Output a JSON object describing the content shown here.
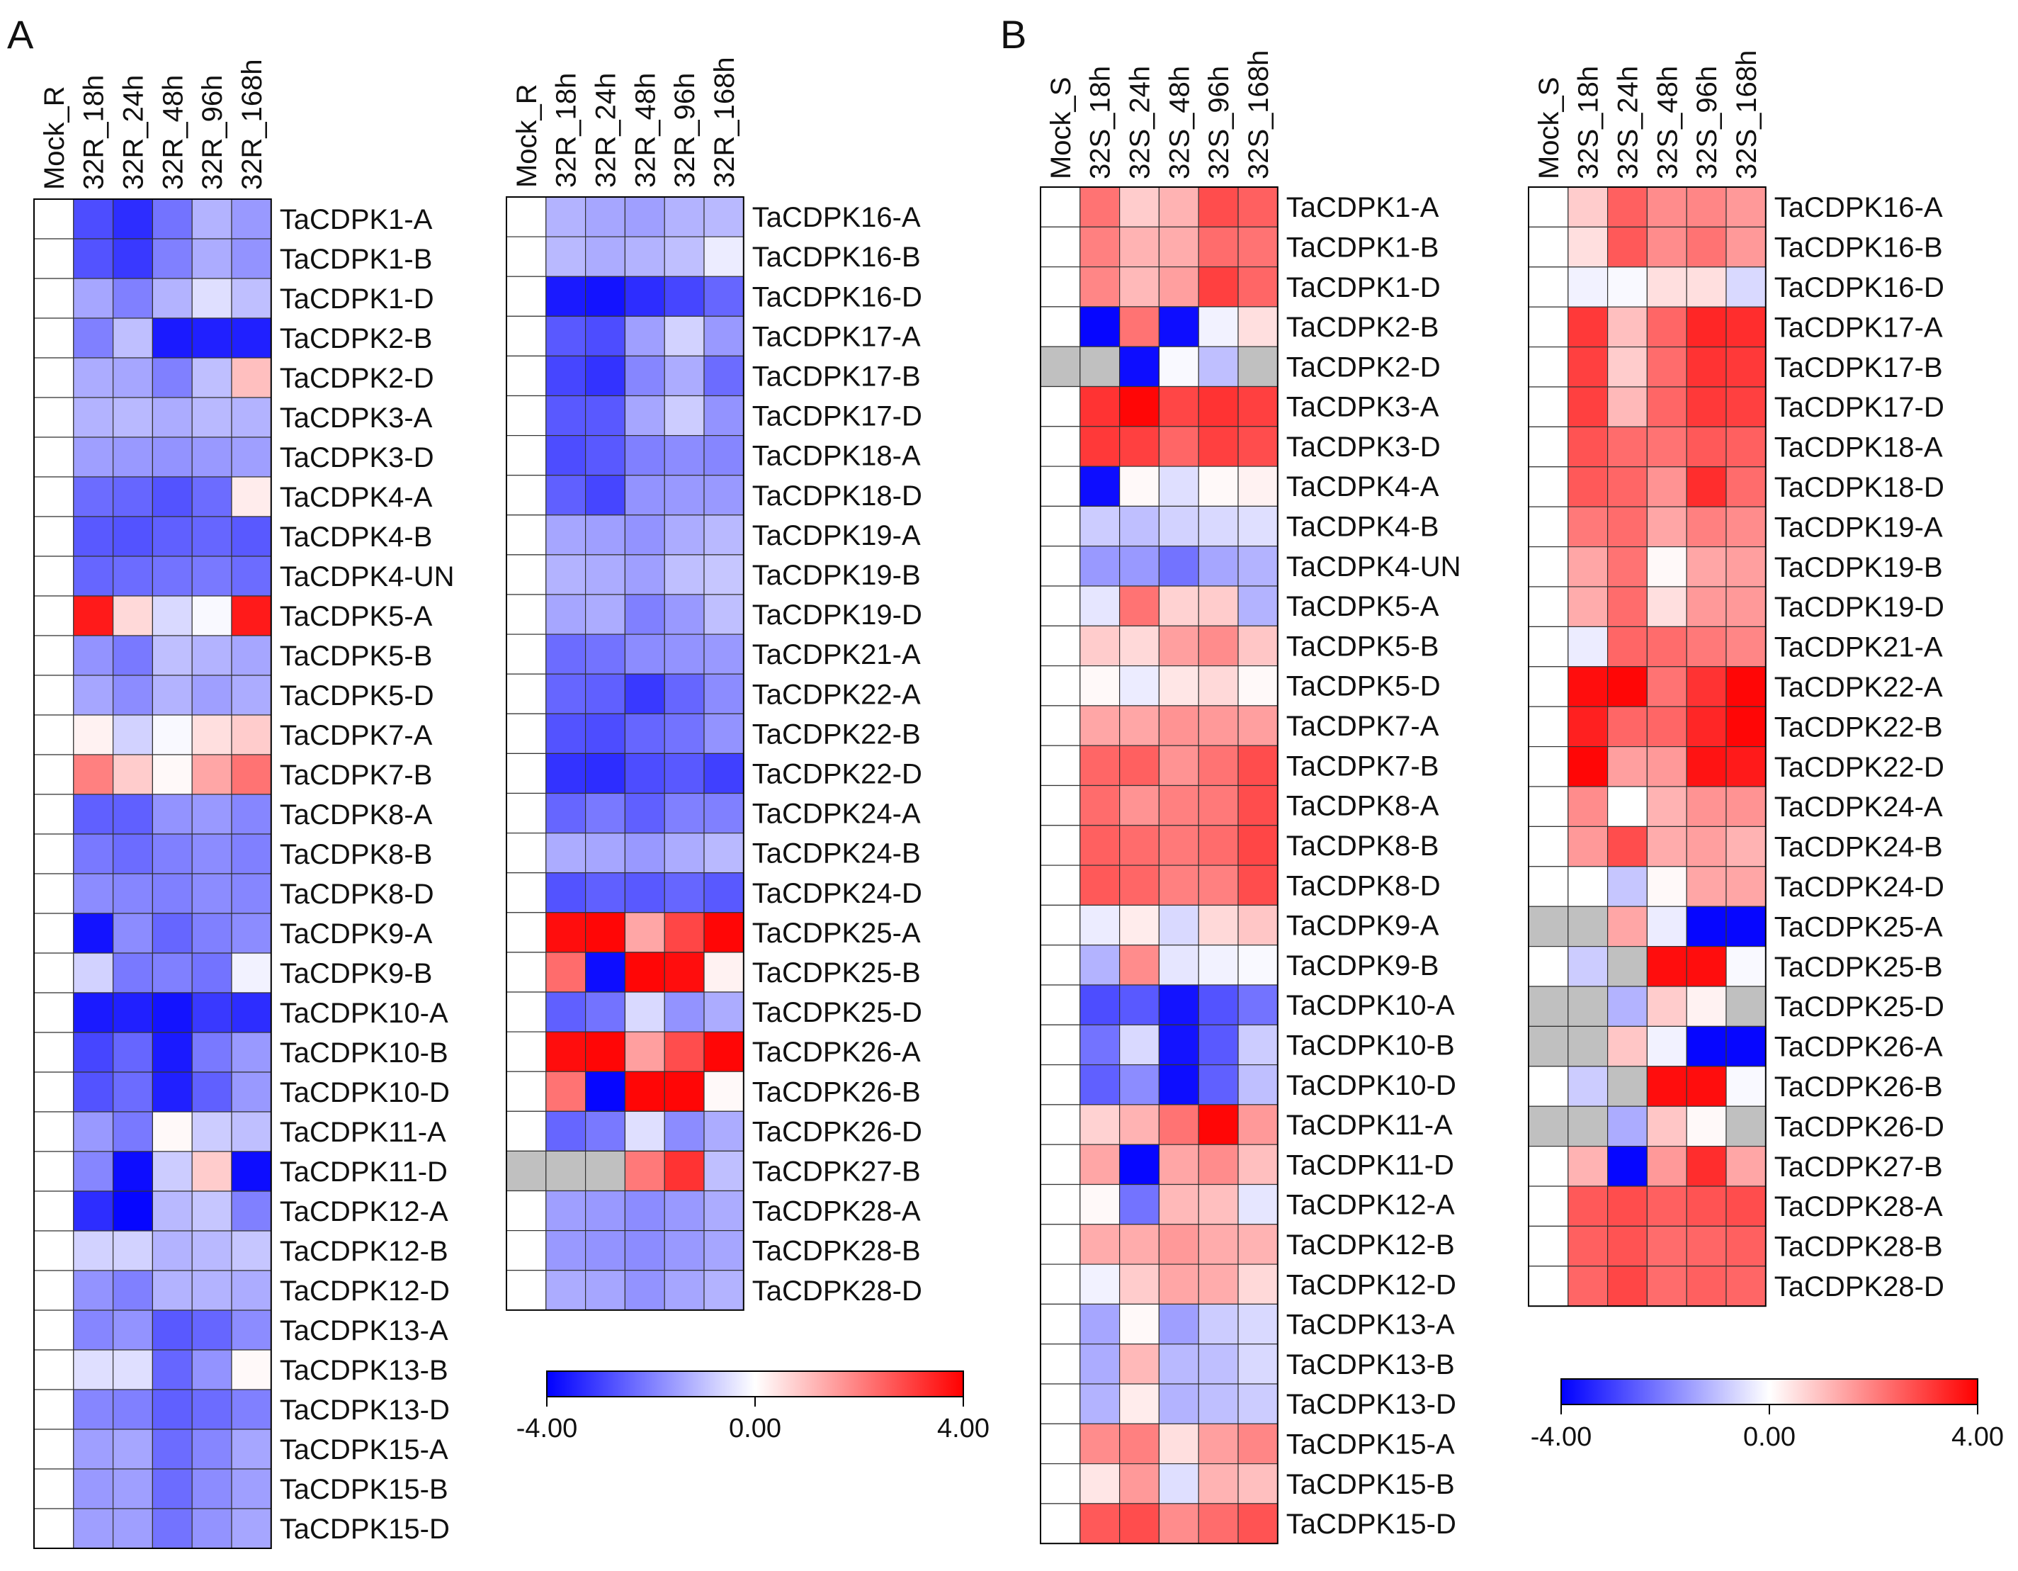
{
  "figure": {
    "panel_labels": [
      "A",
      "B"
    ]
  },
  "colors": {
    "negative": "#0000ff",
    "zero": "#ffffff",
    "positive": "#ff0000",
    "missing": "#c0c0c0",
    "grid": "#333333"
  },
  "chart_data": [
    {
      "type": "heatmap",
      "panel": "A",
      "title": "",
      "columns": [
        "Mock_R",
        "32R_18h",
        "32R_24h",
        "32R_48h",
        "32R_96h",
        "32R_168h"
      ],
      "rows": [
        "TaCDPK1-A",
        "TaCDPK1-B",
        "TaCDPK1-D",
        "TaCDPK2-B",
        "TaCDPK2-D",
        "TaCDPK3-A",
        "TaCDPK3-D",
        "TaCDPK4-A",
        "TaCDPK4-B",
        "TaCDPK4-UN",
        "TaCDPK5-A",
        "TaCDPK5-B",
        "TaCDPK5-D",
        "TaCDPK7-A",
        "TaCDPK7-B",
        "TaCDPK8-A",
        "TaCDPK8-B",
        "TaCDPK8-D",
        "TaCDPK9-A",
        "TaCDPK9-B",
        "TaCDPK10-A",
        "TaCDPK10-B",
        "TaCDPK10-D",
        "TaCDPK11-A",
        "TaCDPK11-D",
        "TaCDPK12-A",
        "TaCDPK12-B",
        "TaCDPK12-D",
        "TaCDPK13-A",
        "TaCDPK13-B",
        "TaCDPK13-D",
        "TaCDPK15-A",
        "TaCDPK15-B",
        "TaCDPK15-D"
      ],
      "values": [
        [
          0,
          -2.8,
          -3.3,
          -2.2,
          -1.2,
          -1.6
        ],
        [
          0,
          -2.7,
          -3.1,
          -2.0,
          -1.3,
          -1.7
        ],
        [
          0,
          -1.4,
          -2.0,
          -1.2,
          -0.5,
          -1.0
        ],
        [
          0,
          -2.0,
          -1.0,
          -3.6,
          -3.5,
          -3.5
        ],
        [
          0,
          -1.3,
          -1.4,
          -2.0,
          -1.0,
          1.0
        ],
        [
          0,
          -1.2,
          -1.1,
          -1.3,
          -1.1,
          -1.2
        ],
        [
          0,
          -1.5,
          -1.6,
          -1.7,
          -1.6,
          -1.5
        ],
        [
          0,
          -2.3,
          -2.4,
          -2.7,
          -2.3,
          0.3
        ],
        [
          0,
          -2.6,
          -2.7,
          -2.5,
          -2.4,
          -2.6
        ],
        [
          0,
          -2.4,
          -2.3,
          -2.2,
          -2.1,
          -2.3
        ],
        [
          0,
          3.6,
          0.6,
          -0.6,
          -0.1,
          3.6
        ],
        [
          0,
          -1.7,
          -2.1,
          -1.0,
          -1.2,
          -1.4
        ],
        [
          0,
          -1.4,
          -1.8,
          -1.2,
          -1.5,
          -1.3
        ],
        [
          0,
          0.2,
          -0.7,
          -0.1,
          0.5,
          0.8
        ],
        [
          0,
          2.0,
          0.8,
          0.1,
          1.4,
          2.2
        ],
        [
          0,
          -2.5,
          -2.5,
          -1.7,
          -1.6,
          -1.9
        ],
        [
          0,
          -2.1,
          -2.3,
          -2.0,
          -1.8,
          -2.0
        ],
        [
          0,
          -1.8,
          -1.9,
          -2.0,
          -1.8,
          -1.9
        ],
        [
          0,
          -3.7,
          -1.8,
          -2.4,
          -2.0,
          -1.8
        ],
        [
          0,
          -0.7,
          -2.1,
          -2.0,
          -2.2,
          -0.2
        ],
        [
          0,
          -3.6,
          -3.5,
          -3.7,
          -3.1,
          -3.3
        ],
        [
          0,
          -2.9,
          -2.4,
          -3.6,
          -2.1,
          -1.6
        ],
        [
          0,
          -2.7,
          -2.3,
          -3.5,
          -2.5,
          -1.6
        ],
        [
          0,
          -1.6,
          -2.1,
          0.1,
          -0.8,
          -1.0
        ],
        [
          0,
          -1.9,
          -3.8,
          -0.8,
          0.8,
          -3.8
        ],
        [
          0,
          -3.3,
          -3.9,
          -1.1,
          -0.9,
          -2.0
        ],
        [
          0,
          -0.7,
          -0.7,
          -1.2,
          -1.1,
          -0.9
        ],
        [
          0,
          -1.7,
          -2.0,
          -1.2,
          -1.2,
          -1.3
        ],
        [
          0,
          -1.9,
          -1.7,
          -2.6,
          -2.4,
          -1.8
        ],
        [
          0,
          -0.5,
          -0.5,
          -2.4,
          -1.7,
          0.1
        ],
        [
          0,
          -1.9,
          -2.0,
          -2.5,
          -2.3,
          -2.0
        ],
        [
          0,
          -1.5,
          -1.4,
          -2.3,
          -1.9,
          -1.4
        ],
        [
          0,
          -1.6,
          -1.5,
          -2.3,
          -1.8,
          -1.5
        ],
        [
          0,
          -1.5,
          -1.5,
          -2.2,
          -1.7,
          -1.4
        ]
      ],
      "scale": {
        "min": -4.0,
        "mid": 0.0,
        "max": 4.0,
        "labels": [
          "-4.00",
          "0.00",
          "4.00"
        ],
        "colors": [
          "blue",
          "white",
          "red"
        ]
      }
    },
    {
      "type": "heatmap",
      "panel": "A",
      "title": "",
      "columns": [
        "Mock_R",
        "32R_18h",
        "32R_24h",
        "32R_48h",
        "32R_96h",
        "32R_168h"
      ],
      "rows": [
        "TaCDPK16-A",
        "TaCDPK16-B",
        "TaCDPK16-D",
        "TaCDPK17-A",
        "TaCDPK17-B",
        "TaCDPK17-D",
        "TaCDPK18-A",
        "TaCDPK18-D",
        "TaCDPK19-A",
        "TaCDPK19-B",
        "TaCDPK19-D",
        "TaCDPK21-A",
        "TaCDPK22-A",
        "TaCDPK22-B",
        "TaCDPK22-D",
        "TaCDPK24-A",
        "TaCDPK24-B",
        "TaCDPK24-D",
        "TaCDPK25-A",
        "TaCDPK25-B",
        "TaCDPK25-D",
        "TaCDPK26-A",
        "TaCDPK26-B",
        "TaCDPK26-D",
        "TaCDPK27-B",
        "TaCDPK28-A",
        "TaCDPK28-B",
        "TaCDPK28-D"
      ],
      "values": [
        [
          0,
          -1.2,
          -1.4,
          -1.5,
          -1.2,
          -1.1
        ],
        [
          0,
          -1.1,
          -1.3,
          -1.2,
          -1.0,
          -0.3
        ],
        [
          0,
          -3.6,
          -3.7,
          -3.3,
          -2.9,
          -2.4
        ],
        [
          0,
          -2.6,
          -2.8,
          -1.5,
          -0.7,
          -1.6
        ],
        [
          0,
          -2.9,
          -3.2,
          -1.9,
          -1.3,
          -2.3
        ],
        [
          0,
          -2.6,
          -2.6,
          -1.4,
          -0.8,
          -1.7
        ],
        [
          0,
          -2.8,
          -2.6,
          -2.0,
          -1.8,
          -1.9
        ],
        [
          0,
          -2.5,
          -2.9,
          -1.7,
          -1.6,
          -1.6
        ],
        [
          0,
          -1.4,
          -1.5,
          -1.7,
          -1.3,
          -1.1
        ],
        [
          0,
          -1.2,
          -1.3,
          -1.5,
          -1.0,
          -0.9
        ],
        [
          0,
          -1.4,
          -1.3,
          -2.0,
          -1.6,
          -1.0
        ],
        [
          0,
          -2.3,
          -2.2,
          -1.8,
          -1.7,
          -1.6
        ],
        [
          0,
          -2.4,
          -2.5,
          -3.1,
          -2.4,
          -1.8
        ],
        [
          0,
          -2.7,
          -2.8,
          -2.4,
          -2.2,
          -1.7
        ],
        [
          0,
          -3.2,
          -3.3,
          -2.8,
          -2.6,
          -3.0
        ],
        [
          0,
          -2.4,
          -2.1,
          -2.5,
          -2.0,
          -2.0
        ],
        [
          0,
          -1.3,
          -1.4,
          -1.6,
          -1.3,
          -1.1
        ],
        [
          0,
          -2.7,
          -2.5,
          -2.6,
          -2.4,
          -2.6
        ],
        [
          0,
          3.8,
          3.9,
          1.4,
          2.9,
          3.9
        ],
        [
          0,
          2.3,
          -3.8,
          3.9,
          3.8,
          0.2
        ],
        [
          0,
          -2.5,
          -2.2,
          -0.6,
          -1.7,
          -1.3
        ],
        [
          0,
          3.8,
          3.9,
          1.5,
          2.8,
          3.9
        ],
        [
          0,
          2.2,
          -3.9,
          3.9,
          3.9,
          0.1
        ],
        [
          0,
          -2.4,
          -2.1,
          -0.5,
          -1.8,
          -1.3
        ],
        [
          null,
          null,
          null,
          2.1,
          3.2,
          -1.0
        ],
        [
          0,
          -1.5,
          -1.6,
          -1.8,
          -1.6,
          -1.3
        ],
        [
          0,
          -1.6,
          -1.7,
          -1.8,
          -1.6,
          -1.4
        ],
        [
          0,
          -1.3,
          -1.4,
          -1.7,
          -1.4,
          -1.2
        ]
      ],
      "scale": {
        "min": -4.0,
        "mid": 0.0,
        "max": 4.0,
        "labels": [
          "-4.00",
          "0.00",
          "4.00"
        ],
        "colors": [
          "blue",
          "white",
          "red"
        ]
      }
    },
    {
      "type": "heatmap",
      "panel": "B",
      "title": "",
      "columns": [
        "Mock_S",
        "32S_18h",
        "32S_24h",
        "32S_48h",
        "32S_96h",
        "32S_168h"
      ],
      "rows": [
        "TaCDPK1-A",
        "TaCDPK1-B",
        "TaCDPK1-D",
        "TaCDPK2-B",
        "TaCDPK2-D",
        "TaCDPK3-A",
        "TaCDPK3-D",
        "TaCDPK4-A",
        "TaCDPK4-B",
        "TaCDPK4-UN",
        "TaCDPK5-A",
        "TaCDPK5-B",
        "TaCDPK5-D",
        "TaCDPK7-A",
        "TaCDPK7-B",
        "TaCDPK8-A",
        "TaCDPK8-B",
        "TaCDPK8-D",
        "TaCDPK9-A",
        "TaCDPK9-B",
        "TaCDPK10-A",
        "TaCDPK10-B",
        "TaCDPK10-D",
        "TaCDPK11-A",
        "TaCDPK11-D",
        "TaCDPK12-A",
        "TaCDPK12-B",
        "TaCDPK12-D",
        "TaCDPK13-A",
        "TaCDPK13-B",
        "TaCDPK13-D",
        "TaCDPK15-A",
        "TaCDPK15-B",
        "TaCDPK15-D"
      ],
      "values": [
        [
          0,
          2.2,
          0.8,
          1.2,
          2.8,
          2.5
        ],
        [
          0,
          2.0,
          1.2,
          1.3,
          2.3,
          2.2
        ],
        [
          0,
          1.9,
          1.1,
          1.5,
          3.0,
          2.4
        ],
        [
          0,
          -3.9,
          2.2,
          -3.8,
          -0.2,
          0.5
        ],
        [
          null,
          null,
          -3.8,
          -0.1,
          -1.0,
          null
        ],
        [
          0,
          3.2,
          3.9,
          2.9,
          3.2,
          3.0
        ],
        [
          0,
          3.1,
          3.0,
          2.4,
          3.0,
          2.8
        ],
        [
          0,
          -3.8,
          0.1,
          -0.5,
          0.1,
          0.2
        ],
        [
          0,
          -0.8,
          -1.0,
          -0.7,
          -0.6,
          -0.5
        ],
        [
          0,
          -1.6,
          -1.6,
          -2.2,
          -1.4,
          -1.2
        ],
        [
          0,
          -0.4,
          2.2,
          0.7,
          0.8,
          -1.2
        ],
        [
          0,
          0.8,
          0.6,
          1.5,
          1.8,
          0.9
        ],
        [
          0,
          0.1,
          -0.3,
          0.4,
          0.6,
          0.1
        ],
        [
          0,
          1.4,
          1.4,
          1.7,
          1.6,
          1.5
        ],
        [
          0,
          2.4,
          2.5,
          1.7,
          2.2,
          2.8
        ],
        [
          0,
          2.3,
          1.7,
          2.0,
          2.1,
          2.8
        ],
        [
          0,
          2.5,
          2.3,
          2.1,
          2.3,
          2.9
        ],
        [
          0,
          2.6,
          2.4,
          2.0,
          2.0,
          2.8
        ],
        [
          0,
          -0.3,
          0.3,
          -0.6,
          0.6,
          0.9
        ],
        [
          0,
          -1.2,
          1.8,
          -0.4,
          -0.2,
          -0.1
        ],
        [
          0,
          -2.8,
          -2.6,
          -3.7,
          -2.7,
          -2.2
        ],
        [
          0,
          -2.2,
          -0.6,
          -3.7,
          -2.6,
          -0.8
        ],
        [
          0,
          -2.5,
          -1.8,
          -3.8,
          -2.5,
          -1.0
        ],
        [
          0,
          0.7,
          1.2,
          2.2,
          3.9,
          1.6
        ],
        [
          0,
          1.4,
          -3.9,
          1.4,
          1.8,
          1.0
        ],
        [
          0,
          0.1,
          -2.2,
          1.1,
          1.0,
          -0.4
        ],
        [
          0,
          1.3,
          1.3,
          1.6,
          1.3,
          1.2
        ],
        [
          0,
          -0.2,
          0.8,
          1.4,
          1.3,
          0.6
        ],
        [
          0,
          -1.4,
          0.1,
          -1.5,
          -0.8,
          -0.6
        ],
        [
          0,
          -1.3,
          1.1,
          -1.1,
          -1.0,
          -0.6
        ],
        [
          0,
          -1.2,
          0.3,
          -1.2,
          -1.0,
          -0.8
        ],
        [
          0,
          1.8,
          2.0,
          0.5,
          1.5,
          1.9
        ],
        [
          0,
          0.4,
          1.6,
          -0.5,
          1.2,
          1.0
        ],
        [
          0,
          2.6,
          2.8,
          1.8,
          2.3,
          2.7
        ]
      ],
      "scale": {
        "min": -4.0,
        "mid": 0.0,
        "max": 4.0,
        "labels": [
          "-4.00",
          "0.00",
          "4.00"
        ],
        "colors": [
          "blue",
          "white",
          "red"
        ]
      }
    },
    {
      "type": "heatmap",
      "panel": "B",
      "title": "",
      "columns": [
        "Mock_S",
        "32S_18h",
        "32S_24h",
        "32S_48h",
        "32S_96h",
        "32S_168h"
      ],
      "rows": [
        "TaCDPK16-A",
        "TaCDPK16-B",
        "TaCDPK16-D",
        "TaCDPK17-A",
        "TaCDPK17-B",
        "TaCDPK17-D",
        "TaCDPK18-A",
        "TaCDPK18-D",
        "TaCDPK19-A",
        "TaCDPK19-B",
        "TaCDPK19-D",
        "TaCDPK21-A",
        "TaCDPK22-A",
        "TaCDPK22-B",
        "TaCDPK22-D",
        "TaCDPK24-A",
        "TaCDPK24-B",
        "TaCDPK24-D",
        "TaCDPK25-A",
        "TaCDPK25-B",
        "TaCDPK25-D",
        "TaCDPK26-A",
        "TaCDPK26-B",
        "TaCDPK26-D",
        "TaCDPK27-B",
        "TaCDPK28-A",
        "TaCDPK28-B",
        "TaCDPK28-D"
      ],
      "values": [
        [
          0,
          0.8,
          2.5,
          1.8,
          1.9,
          1.6
        ],
        [
          0,
          0.5,
          2.6,
          1.8,
          2.2,
          1.6
        ],
        [
          0,
          -0.2,
          -0.1,
          0.5,
          0.5,
          -0.6
        ],
        [
          0,
          3.1,
          1.0,
          2.4,
          3.4,
          3.3
        ],
        [
          0,
          3.0,
          0.8,
          2.3,
          3.2,
          3.1
        ],
        [
          0,
          3.0,
          1.1,
          2.4,
          3.1,
          3.0
        ],
        [
          0,
          2.7,
          2.3,
          2.2,
          2.6,
          2.5
        ],
        [
          0,
          2.6,
          2.4,
          1.7,
          3.3,
          2.3
        ],
        [
          0,
          2.1,
          2.3,
          1.4,
          2.0,
          1.8
        ],
        [
          0,
          1.4,
          2.2,
          0.1,
          1.4,
          1.5
        ],
        [
          0,
          1.3,
          2.3,
          0.5,
          1.6,
          1.6
        ],
        [
          0,
          -0.3,
          2.4,
          2.3,
          2.1,
          1.9
        ],
        [
          0,
          3.8,
          3.9,
          2.2,
          3.2,
          3.9
        ],
        [
          0,
          3.5,
          2.4,
          2.4,
          3.4,
          3.9
        ],
        [
          0,
          3.9,
          1.5,
          1.6,
          3.7,
          3.6
        ],
        [
          0,
          1.8,
          0.0,
          1.2,
          1.7,
          1.7
        ],
        [
          0,
          1.6,
          2.8,
          1.3,
          1.5,
          1.2
        ],
        [
          0,
          0.0,
          -0.9,
          0.1,
          1.4,
          1.4
        ],
        [
          null,
          null,
          1.4,
          -0.3,
          -3.9,
          -3.9
        ],
        [
          0,
          -0.8,
          null,
          3.8,
          3.8,
          -0.1
        ],
        [
          null,
          null,
          -1.2,
          0.8,
          0.2,
          null
        ],
        [
          null,
          null,
          0.9,
          -0.2,
          -3.9,
          -3.9
        ],
        [
          0,
          -0.8,
          null,
          3.8,
          3.8,
          -0.1
        ],
        [
          null,
          null,
          -1.3,
          0.9,
          0.1,
          null
        ],
        [
          0,
          1.2,
          -3.9,
          1.6,
          3.3,
          1.4
        ],
        [
          0,
          2.6,
          2.8,
          2.5,
          2.7,
          2.8
        ],
        [
          0,
          2.5,
          2.7,
          2.3,
          2.4,
          2.5
        ],
        [
          0,
          2.4,
          2.9,
          2.3,
          2.5,
          2.4
        ]
      ],
      "scale": {
        "min": -4.0,
        "mid": 0.0,
        "max": 4.0,
        "labels": [
          "-4.00",
          "0.00",
          "4.00"
        ],
        "colors": [
          "blue",
          "white",
          "red"
        ]
      }
    }
  ]
}
